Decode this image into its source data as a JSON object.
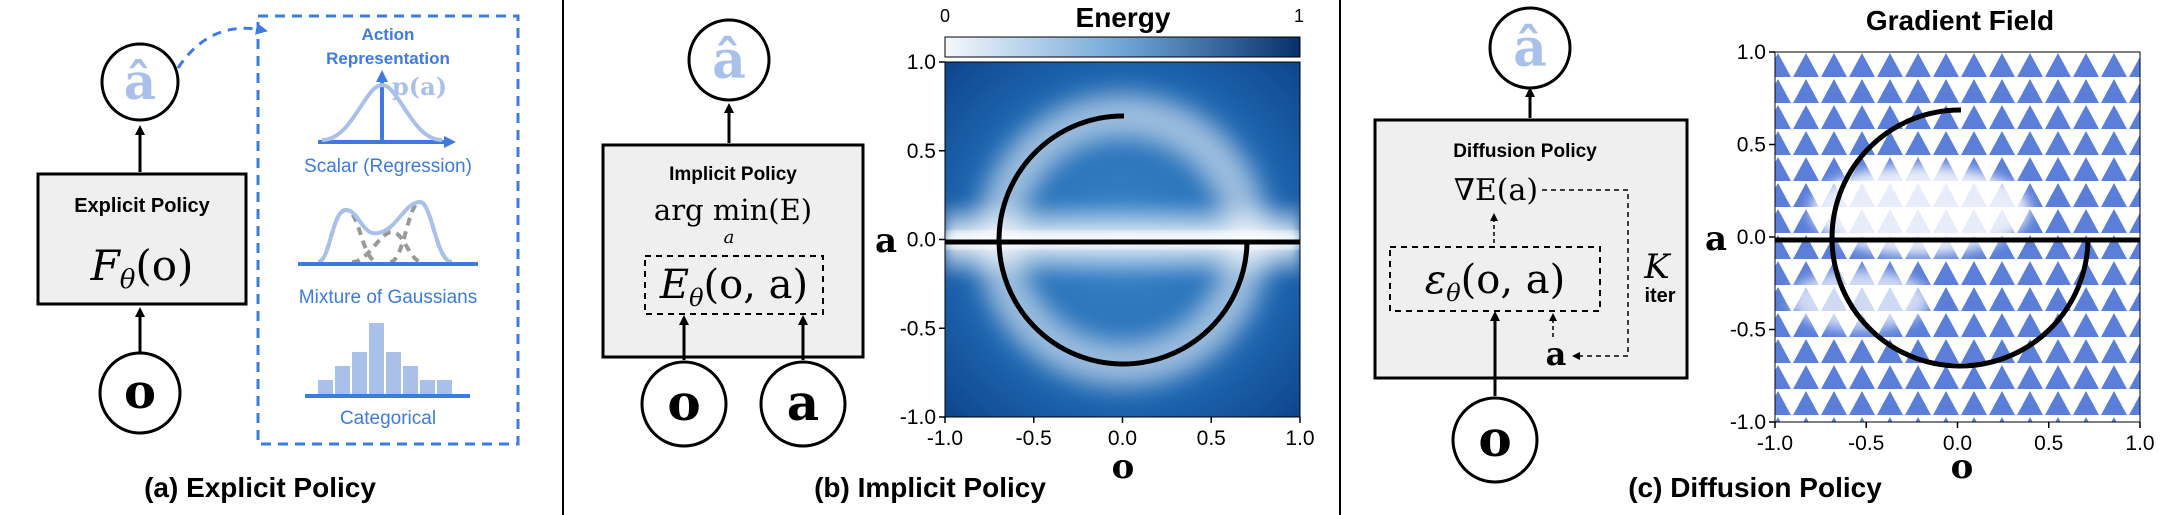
{
  "panel_a": {
    "caption": "(a) Explicit Policy",
    "output_symbol": "â",
    "box_title": "Explicit Policy",
    "box_formula_main": "F",
    "box_formula_sub": "θ",
    "box_formula_arg": "(o)",
    "input_symbol": "o",
    "action_rep": {
      "title_line1": "Action",
      "title_line2": "Representation",
      "p_label": "p(a)",
      "scalar_label": "Scalar (Regression)",
      "mixture_label": "Mixture of Gaussians",
      "categorical_label": "Categorical"
    }
  },
  "panel_b": {
    "caption": "(b) Implicit Policy",
    "output_symbol": "â",
    "box_title": "Implicit Policy",
    "argmin_text": "arg min(E)",
    "argmin_sub": "a",
    "energy_main": "E",
    "energy_sub": "θ",
    "energy_arg": "(o, a)",
    "input_o": "o",
    "input_a": "a",
    "plot": {
      "colorbar_title": "Energy",
      "colorbar_min": "0",
      "colorbar_max": "1",
      "ylabel": "a",
      "xlabel": "o",
      "yticks": [
        "1.0",
        "0.5",
        "0.0",
        "-0.5",
        "-1.0"
      ],
      "xticks": [
        "-1.0",
        "-0.5",
        "0.0",
        "0.5",
        "1.0"
      ]
    }
  },
  "panel_c": {
    "caption": "(c) Diffusion Policy",
    "output_symbol": "â",
    "box_title": "Diffusion Policy",
    "grad_text": "∇E(a)",
    "eps_main": "ε",
    "eps_sub": "θ",
    "eps_arg": "(o, a)",
    "a_label": "a",
    "k_label": "K",
    "iter_label": "iter",
    "input_o": "o",
    "plot": {
      "title": "Gradient Field",
      "ylabel": "a",
      "xlabel": "o",
      "yticks": [
        "1.0",
        "0.5",
        "0.0",
        "-0.5",
        "-1.0"
      ],
      "xticks": [
        "-1.0",
        "-0.5",
        "0.0",
        "0.5",
        "1.0"
      ]
    }
  },
  "colors": {
    "accent_blue": "#3d7be0",
    "light_blue": "#a9c1ea",
    "box_fill": "#efefef",
    "energy_dark": "#0a4da3",
    "arrow_blue": "#5b7fd9"
  }
}
